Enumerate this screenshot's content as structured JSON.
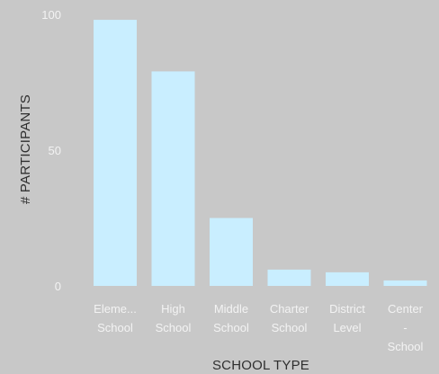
{
  "chart_data": {
    "type": "bar",
    "categories": [
      [
        "Eleme...",
        "School"
      ],
      [
        "High",
        "School"
      ],
      [
        "Middle",
        "School"
      ],
      [
        "Charter",
        "School"
      ],
      [
        "District",
        "Level"
      ],
      [
        "Center",
        "-",
        "School"
      ]
    ],
    "values": [
      98,
      79,
      25,
      6,
      5,
      2
    ],
    "ylim": [
      0,
      100
    ],
    "yticks": [
      0,
      50,
      100
    ],
    "xlabel": "SCHOOL TYPE",
    "ylabel": "# PARTICIPANTS",
    "grid": false,
    "legend": "none",
    "colors": {
      "background": "#c8c8c8",
      "bar": "#c9eeff",
      "tick_text": "#f3f3f3",
      "axis_title": "#2f2f2f"
    }
  }
}
